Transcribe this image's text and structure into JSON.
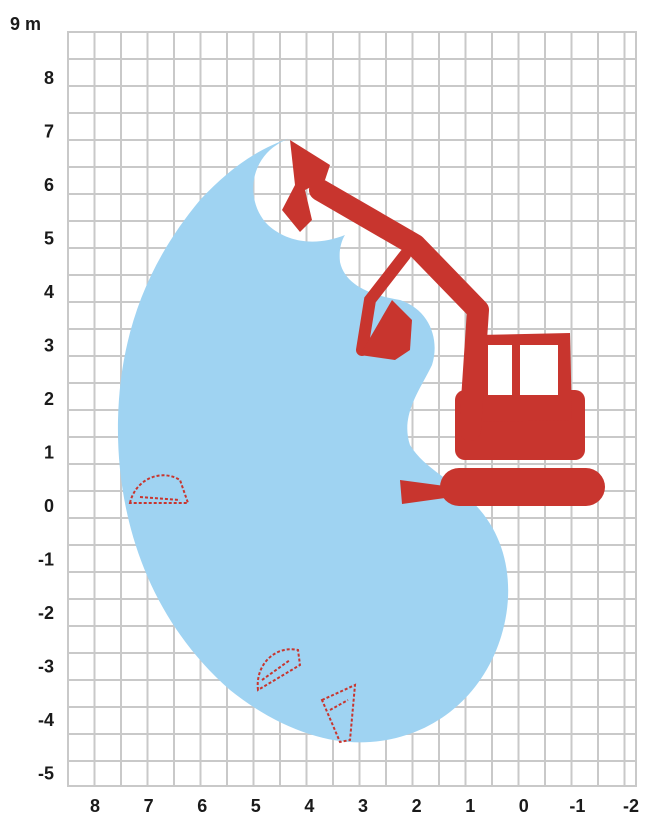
{
  "y_axis": {
    "unit_label": "9 m",
    "ticks": [
      "8",
      "7",
      "6",
      "5",
      "4",
      "3",
      "2",
      "1",
      "0",
      "-1",
      "-2",
      "-3",
      "-4",
      "-5"
    ]
  },
  "x_axis": {
    "ticks": [
      "8",
      "7",
      "6",
      "5",
      "4",
      "3",
      "2",
      "1",
      "0",
      "-1",
      "-2"
    ]
  },
  "colors": {
    "working_range": "#9fd3f2",
    "machine": "#c8352e",
    "grid": "#c9c9c9",
    "labels": "#1a1a1a"
  },
  "icons": {
    "machine": "excavator-icon",
    "bucket_positions": [
      "bucket-outline-icon",
      "bucket-outline-icon",
      "bucket-outline-icon"
    ]
  }
}
